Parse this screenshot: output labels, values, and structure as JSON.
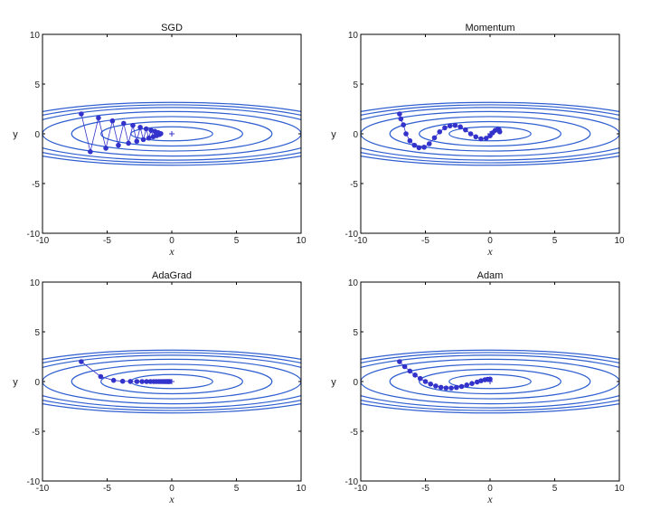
{
  "chart_data": [
    {
      "type": "line",
      "title": "SGD",
      "xlabel": "x",
      "ylabel": "y",
      "xlim": [
        -10,
        10
      ],
      "ylim": [
        -10,
        10
      ],
      "xticks": [
        "-10",
        "-5",
        "0",
        "5",
        "10"
      ],
      "yticks": [
        "10",
        "5",
        "0",
        "-5",
        "-10"
      ],
      "contour_levels": [
        0.5,
        1.5,
        3,
        5,
        7,
        8.5,
        10
      ],
      "path": {
        "x": [
          -7.0,
          -6.3,
          -5.67,
          -5.1,
          -4.59,
          -4.13,
          -3.72,
          -3.35,
          -3.01,
          -2.71,
          -2.44,
          -2.2,
          -1.98,
          -1.78,
          -1.6,
          -1.44,
          -1.3,
          -1.17,
          -1.05,
          -0.95,
          -0.85
        ],
        "y": [
          2.0,
          -1.8,
          1.6,
          -1.45,
          1.3,
          -1.15,
          1.05,
          -0.95,
          0.85,
          -0.75,
          0.65,
          -0.58,
          0.5,
          -0.43,
          0.35,
          -0.3,
          0.24,
          -0.18,
          0.12,
          -0.07,
          0.02
        ]
      }
    },
    {
      "type": "line",
      "title": "Momentum",
      "xlabel": "x",
      "ylabel": "y",
      "xlim": [
        -10,
        10
      ],
      "ylim": [
        -10,
        10
      ],
      "xticks": [
        "-10",
        "-5",
        "0",
        "5",
        "10"
      ],
      "yticks": [
        "10",
        "5",
        "0",
        "-5",
        "-10"
      ],
      "contour_levels": [
        0.5,
        1.5,
        3,
        5,
        7,
        8.5,
        10
      ],
      "path": {
        "x": [
          -7.0,
          -6.9,
          -6.7,
          -6.5,
          -6.2,
          -5.85,
          -5.5,
          -5.1,
          -4.7,
          -4.3,
          -3.9,
          -3.5,
          -3.1,
          -2.7,
          -2.3,
          -1.9,
          -1.5,
          -1.1,
          -0.7,
          -0.3,
          0.0,
          0.2,
          0.4,
          0.6,
          0.7,
          0.75
        ],
        "y": [
          2.0,
          1.5,
          0.9,
          0.0,
          -0.7,
          -1.15,
          -1.4,
          -1.35,
          -1.0,
          -0.4,
          0.2,
          0.6,
          0.8,
          0.85,
          0.7,
          0.4,
          0.0,
          -0.3,
          -0.5,
          -0.45,
          -0.2,
          0.1,
          0.35,
          0.45,
          0.4,
          0.2
        ]
      }
    },
    {
      "type": "line",
      "title": "AdaGrad",
      "xlabel": "x",
      "ylabel": "y",
      "xlim": [
        -10,
        10
      ],
      "ylim": [
        -10,
        10
      ],
      "xticks": [
        "-10",
        "-5",
        "0",
        "5",
        "10"
      ],
      "yticks": [
        "10",
        "5",
        "0",
        "-5",
        "-10"
      ],
      "contour_levels": [
        0.5,
        1.5,
        3,
        5,
        7,
        8.5,
        10
      ],
      "path": {
        "x": [
          -7.0,
          -5.5,
          -4.5,
          -3.8,
          -3.2,
          -2.7,
          -2.3,
          -1.95,
          -1.65,
          -1.4,
          -1.2,
          -1.0,
          -0.85,
          -0.7,
          -0.58,
          -0.47,
          -0.38,
          -0.3,
          -0.23,
          -0.17
        ],
        "y": [
          2.0,
          0.5,
          0.12,
          0.03,
          0.01,
          0.0,
          0.0,
          0.0,
          0.0,
          0.0,
          0.0,
          0.0,
          0.0,
          0.0,
          0.0,
          0.0,
          0.0,
          0.0,
          0.0,
          0.0
        ]
      }
    },
    {
      "type": "line",
      "title": "Adam",
      "xlabel": "x",
      "ylabel": "y",
      "xlim": [
        -10,
        10
      ],
      "ylim": [
        -10,
        10
      ],
      "xticks": [
        "-10",
        "-5",
        "0",
        "5",
        "10"
      ],
      "yticks": [
        "10",
        "5",
        "0",
        "-5",
        "-10"
      ],
      "contour_levels": [
        0.5,
        1.5,
        3,
        5,
        7,
        8.5,
        10
      ],
      "path": {
        "x": [
          -7.0,
          -6.6,
          -6.2,
          -5.8,
          -5.4,
          -5.0,
          -4.6,
          -4.2,
          -3.8,
          -3.4,
          -3.0,
          -2.6,
          -2.2,
          -1.8,
          -1.4,
          -1.0,
          -0.7,
          -0.4,
          -0.2,
          0.0
        ],
        "y": [
          2.0,
          1.5,
          1.05,
          0.65,
          0.3,
          0.0,
          -0.25,
          -0.45,
          -0.58,
          -0.65,
          -0.65,
          -0.6,
          -0.5,
          -0.35,
          -0.2,
          -0.05,
          0.08,
          0.18,
          0.22,
          0.25
        ]
      }
    }
  ]
}
